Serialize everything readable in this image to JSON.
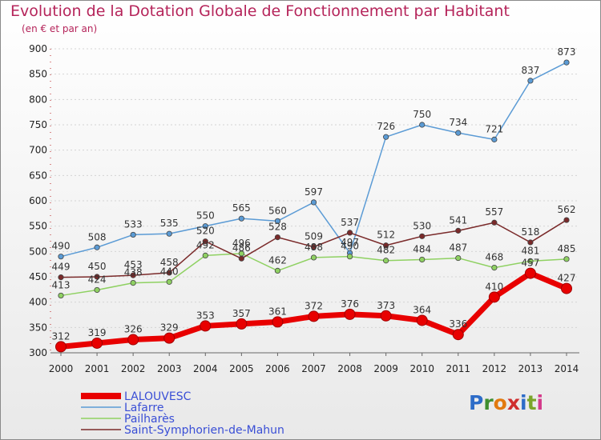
{
  "title": "Evolution de la Dotation Globale de Fonctionnement par Habitant",
  "subtitle": "(en € et par an)",
  "logo_text": "Proxiti",
  "chart_data": {
    "type": "line",
    "title": "Evolution de la Dotation Globale de Fonctionnement par Habitant",
    "subtitle": "(en € et par an)",
    "xlabel": "",
    "ylabel": "",
    "ylim": [
      300,
      900
    ],
    "yticks": [
      300,
      350,
      400,
      450,
      500,
      550,
      600,
      650,
      700,
      750,
      800,
      850,
      900
    ],
    "grid": true,
    "legend_position": "bottom-left",
    "categories": [
      "2000",
      "2001",
      "2002",
      "2003",
      "2004",
      "2005",
      "2006",
      "2007",
      "2008",
      "2009",
      "2010",
      "2011",
      "2012",
      "2013",
      "2014"
    ],
    "series": [
      {
        "name": "LALOUVESC",
        "color": "#e80000",
        "values": [
          312,
          319,
          326,
          329,
          353,
          357,
          361,
          372,
          376,
          373,
          364,
          336,
          410,
          457,
          427
        ]
      },
      {
        "name": "Lafarre",
        "color": "#5b9bd5",
        "values": [
          490,
          508,
          533,
          535,
          550,
          565,
          560,
          597,
          497,
          726,
          750,
          734,
          721,
          837,
          873
        ]
      },
      {
        "name": "Pailharès",
        "color": "#8fd162",
        "values": [
          413,
          424,
          438,
          440,
          492,
          496,
          462,
          488,
          490,
          482,
          484,
          487,
          468,
          481,
          485
        ]
      },
      {
        "name": "Saint-Symphorien-de-Mahun",
        "color": "#7a2a2a",
        "values": [
          449,
          450,
          453,
          458,
          520,
          486,
          528,
          509,
          537,
          512,
          530,
          541,
          557,
          518,
          562
        ]
      }
    ]
  }
}
